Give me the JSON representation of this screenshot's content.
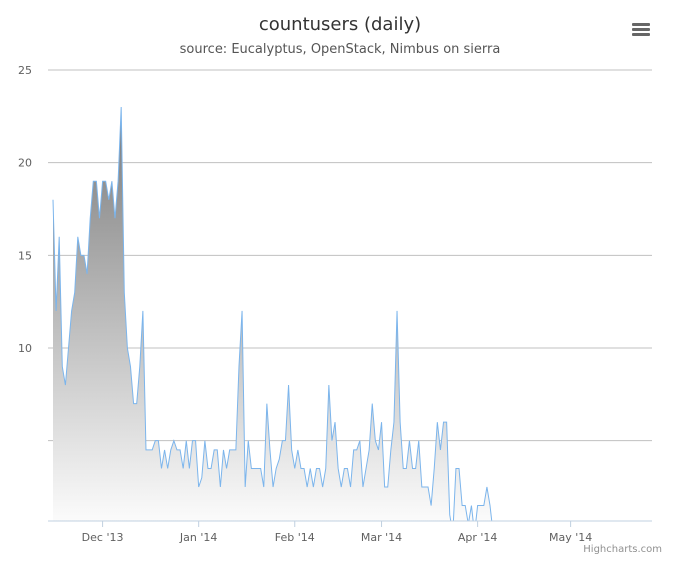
{
  "chart_data": {
    "type": "area",
    "title": "countusers (daily)",
    "subtitle": "source: Eucalyptus, OpenStack, Nimbus on sierra",
    "y_ticks": [
      "25",
      "20",
      "15",
      "10"
    ],
    "ylim": [
      0,
      25
    ],
    "x_ticks": [
      {
        "label": "Dec '13",
        "date": "2013-12-01"
      },
      {
        "label": "Jan '14",
        "date": "2014-01-01"
      },
      {
        "label": "Feb '14",
        "date": "2014-02-01"
      },
      {
        "label": "Mar '14",
        "date": "2014-03-01"
      },
      {
        "label": "Apr '14",
        "date": "2014-04-01"
      },
      {
        "label": "May '14",
        "date": "2014-05-01"
      }
    ],
    "xlim": [
      "2013-11-15",
      "2014-05-15"
    ],
    "grid": true,
    "series": [
      {
        "color": "#7cb5ec",
        "points": [
          [
            "2013-11-15",
            18
          ],
          [
            "2013-11-16",
            12
          ],
          [
            "2013-11-17",
            16
          ],
          [
            "2013-11-18",
            9
          ],
          [
            "2013-11-19",
            8
          ],
          [
            "2013-11-21",
            12
          ],
          [
            "2013-11-22",
            13
          ],
          [
            "2013-11-23",
            16
          ],
          [
            "2013-11-24",
            15
          ],
          [
            "2013-11-25",
            15
          ],
          [
            "2013-11-26",
            14
          ],
          [
            "2013-11-27",
            17
          ],
          [
            "2013-11-28",
            19
          ],
          [
            "2013-11-29",
            19
          ],
          [
            "2013-11-30",
            17
          ],
          [
            "2013-12-01",
            19
          ],
          [
            "2013-12-02",
            19
          ],
          [
            "2013-12-03",
            18
          ],
          [
            "2013-12-04",
            19
          ],
          [
            "2013-12-05",
            17
          ],
          [
            "2013-12-06",
            19
          ],
          [
            "2013-12-07",
            23
          ],
          [
            "2013-12-08",
            13
          ],
          [
            "2013-12-09",
            10
          ],
          [
            "2013-12-10",
            9
          ],
          [
            "2013-12-11",
            7
          ],
          [
            "2013-12-12",
            7
          ],
          [
            "2013-12-13",
            9
          ],
          [
            "2013-12-14",
            12
          ],
          [
            "2013-12-15",
            4.5
          ],
          [
            "2013-12-16",
            4.5
          ],
          [
            "2013-12-17",
            4.5
          ],
          [
            "2013-12-18",
            5
          ],
          [
            "2013-12-19",
            5
          ],
          [
            "2013-12-20",
            3.5
          ],
          [
            "2013-12-21",
            4.5
          ],
          [
            "2013-12-22",
            3.5
          ],
          [
            "2013-12-23",
            4.5
          ],
          [
            "2013-12-24",
            5
          ],
          [
            "2013-12-25",
            4.5
          ],
          [
            "2013-12-26",
            4.5
          ],
          [
            "2013-12-27",
            3.5
          ],
          [
            "2013-12-28",
            5
          ],
          [
            "2013-12-29",
            3.5
          ],
          [
            "2013-12-30",
            5
          ],
          [
            "2013-12-31",
            5
          ],
          [
            "2014-01-01",
            2.5
          ],
          [
            "2014-01-02",
            3
          ],
          [
            "2014-01-03",
            5
          ],
          [
            "2014-01-04",
            3.5
          ],
          [
            "2014-01-05",
            3.5
          ],
          [
            "2014-01-06",
            4.5
          ],
          [
            "2014-01-07",
            4.5
          ],
          [
            "2014-01-08",
            2.5
          ],
          [
            "2014-01-09",
            4.5
          ],
          [
            "2014-01-10",
            3.5
          ],
          [
            "2014-01-11",
            4.5
          ],
          [
            "2014-01-12",
            4.5
          ],
          [
            "2014-01-13",
            4.5
          ],
          [
            "2014-01-14",
            9
          ],
          [
            "2014-01-15",
            12
          ],
          [
            "2014-01-16",
            2.5
          ],
          [
            "2014-01-17",
            5
          ],
          [
            "2014-01-18",
            3.5
          ],
          [
            "2014-01-19",
            3.5
          ],
          [
            "2014-01-20",
            3.5
          ],
          [
            "2014-01-21",
            3.5
          ],
          [
            "2014-01-22",
            2.5
          ],
          [
            "2014-01-23",
            7
          ],
          [
            "2014-01-24",
            4.5
          ],
          [
            "2014-01-25",
            2.5
          ],
          [
            "2014-01-26",
            3.5
          ],
          [
            "2014-01-27",
            4
          ],
          [
            "2014-01-28",
            5
          ],
          [
            "2014-01-29",
            5
          ],
          [
            "2014-01-30",
            8
          ],
          [
            "2014-01-31",
            4.5
          ],
          [
            "2014-02-01",
            3.5
          ],
          [
            "2014-02-02",
            4.5
          ],
          [
            "2014-02-03",
            3.5
          ],
          [
            "2014-02-04",
            3.5
          ],
          [
            "2014-02-05",
            2.5
          ],
          [
            "2014-02-06",
            3.5
          ],
          [
            "2014-02-07",
            2.5
          ],
          [
            "2014-02-08",
            3.5
          ],
          [
            "2014-02-09",
            3.5
          ],
          [
            "2014-02-10",
            2.5
          ],
          [
            "2014-02-11",
            3.5
          ],
          [
            "2014-02-12",
            8
          ],
          [
            "2014-02-13",
            5
          ],
          [
            "2014-02-14",
            6
          ],
          [
            "2014-02-15",
            3.5
          ],
          [
            "2014-02-16",
            2.5
          ],
          [
            "2014-02-17",
            3.5
          ],
          [
            "2014-02-18",
            3.5
          ],
          [
            "2014-02-19",
            2.5
          ],
          [
            "2014-02-20",
            4.5
          ],
          [
            "2014-02-21",
            4.5
          ],
          [
            "2014-02-22",
            5
          ],
          [
            "2014-02-23",
            2.5
          ],
          [
            "2014-02-24",
            3.5
          ],
          [
            "2014-02-25",
            4.5
          ],
          [
            "2014-02-26",
            7
          ],
          [
            "2014-02-27",
            5
          ],
          [
            "2014-02-28",
            4.5
          ],
          [
            "2014-03-01",
            6
          ],
          [
            "2014-03-02",
            2.5
          ],
          [
            "2014-03-03",
            2.5
          ],
          [
            "2014-03-04",
            4.5
          ],
          [
            "2014-03-05",
            6
          ],
          [
            "2014-03-06",
            12
          ],
          [
            "2014-03-07",
            6
          ],
          [
            "2014-03-08",
            3.5
          ],
          [
            "2014-03-09",
            3.5
          ],
          [
            "2014-03-10",
            5
          ],
          [
            "2014-03-11",
            3.5
          ],
          [
            "2014-03-12",
            3.5
          ],
          [
            "2014-03-13",
            5
          ],
          [
            "2014-03-14",
            2.5
          ],
          [
            "2014-03-15",
            2.5
          ],
          [
            "2014-03-16",
            2.5
          ],
          [
            "2014-03-17",
            1.5
          ],
          [
            "2014-03-18",
            3.5
          ],
          [
            "2014-03-19",
            6
          ],
          [
            "2014-03-20",
            4.5
          ],
          [
            "2014-03-21",
            6
          ],
          [
            "2014-03-22",
            6
          ],
          [
            "2014-03-23",
            1
          ],
          [
            "2014-03-24",
            0
          ],
          [
            "2014-03-25",
            3.5
          ],
          [
            "2014-03-26",
            3.5
          ],
          [
            "2014-03-27",
            1.5
          ],
          [
            "2014-03-28",
            1.5
          ],
          [
            "2014-03-29",
            0.5
          ],
          [
            "2014-03-30",
            1.5
          ],
          [
            "2014-03-31",
            0
          ],
          [
            "2014-04-01",
            1.5
          ],
          [
            "2014-04-02",
            1.5
          ],
          [
            "2014-04-03",
            1.5
          ],
          [
            "2014-04-04",
            2.5
          ],
          [
            "2014-04-05",
            1.5
          ],
          [
            "2014-04-06",
            0
          ],
          [
            "2014-04-07",
            0
          ],
          [
            "2014-04-26",
            0
          ],
          [
            "2014-04-27",
            0.5
          ],
          [
            "2014-04-28",
            0.5
          ],
          [
            "2014-04-29",
            0
          ],
          [
            "2014-05-15",
            0
          ]
        ]
      }
    ]
  },
  "credits": "Highcharts.com",
  "menu_icon": "hamburger-menu-icon"
}
